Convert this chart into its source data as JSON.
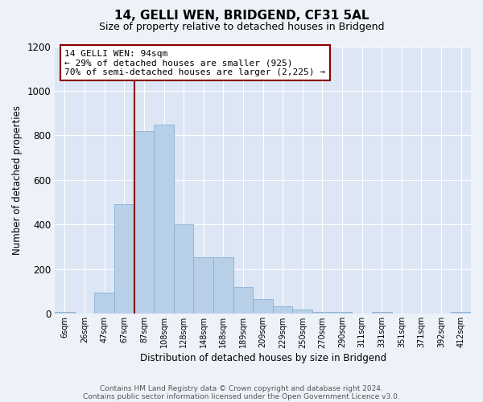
{
  "title": "14, GELLI WEN, BRIDGEND, CF31 5AL",
  "subtitle": "Size of property relative to detached houses in Bridgend",
  "xlabel": "Distribution of detached houses by size in Bridgend",
  "ylabel": "Number of detached properties",
  "bar_labels": [
    "6sqm",
    "26sqm",
    "47sqm",
    "67sqm",
    "87sqm",
    "108sqm",
    "128sqm",
    "148sqm",
    "168sqm",
    "189sqm",
    "209sqm",
    "229sqm",
    "250sqm",
    "270sqm",
    "290sqm",
    "311sqm",
    "331sqm",
    "351sqm",
    "371sqm",
    "392sqm",
    "412sqm"
  ],
  "bar_values": [
    10,
    0,
    95,
    490,
    820,
    850,
    400,
    255,
    255,
    120,
    68,
    35,
    18,
    10,
    8,
    0,
    10,
    0,
    0,
    0,
    8
  ],
  "bar_color": "#b8cfe8",
  "bar_edgecolor": "#8ab0d0",
  "vline_x_index": 4,
  "vline_color": "#8b0000",
  "annotation_text": "14 GELLI WEN: 94sqm\n← 29% of detached houses are smaller (925)\n70% of semi-detached houses are larger (2,225) →",
  "annotation_box_edgecolor": "#8b0000",
  "annotation_box_facecolor": "#ffffff",
  "ylim": [
    0,
    1200
  ],
  "yticks": [
    0,
    200,
    400,
    600,
    800,
    1000,
    1200
  ],
  "footer_line1": "Contains HM Land Registry data © Crown copyright and database right 2024.",
  "footer_line2": "Contains public sector information licensed under the Open Government Licence v3.0.",
  "bg_color": "#edf2f9",
  "plot_bg_color": "#dde6f5"
}
